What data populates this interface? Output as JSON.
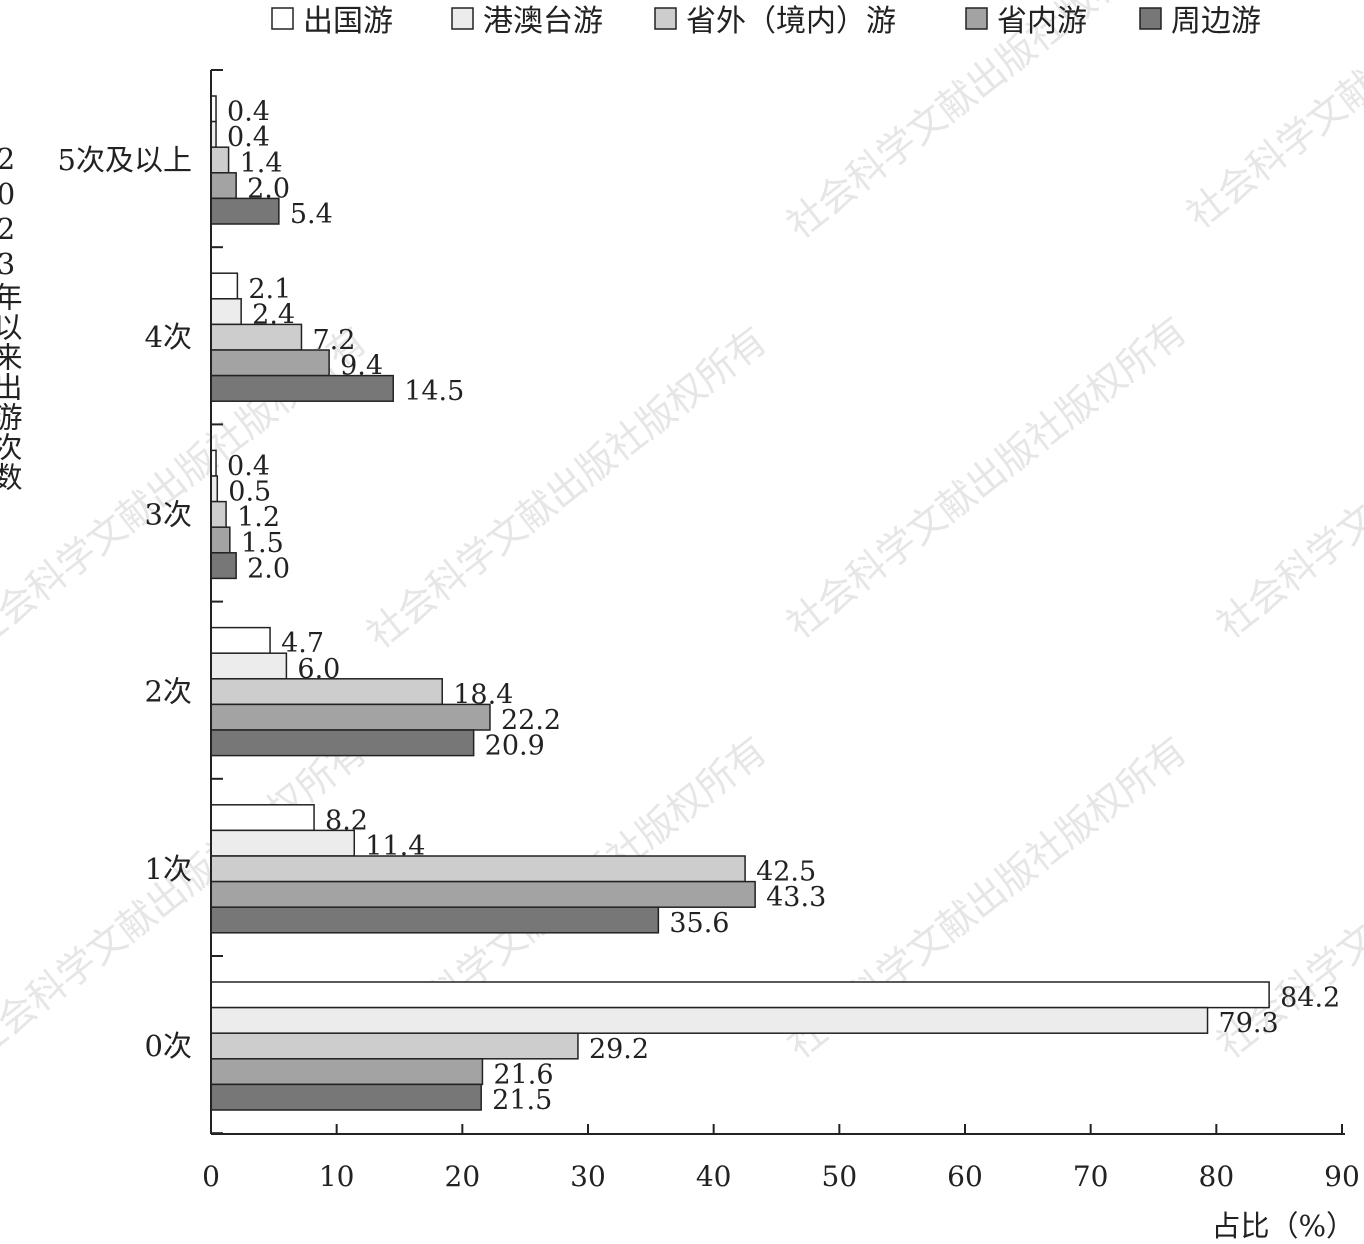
{
  "chart_data": {
    "type": "bar",
    "orientation": "horizontal",
    "categories": [
      "5次及以上",
      "4次",
      "3次",
      "2次",
      "1次",
      "0次"
    ],
    "series": [
      {
        "name": "出国游",
        "color": "#ffffff",
        "values": [
          0.4,
          2.1,
          0.4,
          4.7,
          8.2,
          84.2
        ]
      },
      {
        "name": "港澳台游",
        "color": "#ececec",
        "values": [
          0.4,
          2.4,
          0.5,
          6.0,
          11.4,
          79.3
        ]
      },
      {
        "name": "省外（境内）游",
        "color": "#cdcdcd",
        "values": [
          1.4,
          7.2,
          1.2,
          18.4,
          42.5,
          29.2
        ]
      },
      {
        "name": "省内游",
        "color": "#a3a3a3",
        "values": [
          2.0,
          9.4,
          1.5,
          22.2,
          43.3,
          21.6
        ]
      },
      {
        "name": "周边游",
        "color": "#777777",
        "values": [
          5.4,
          14.5,
          2.0,
          20.9,
          35.6,
          21.5
        ]
      }
    ],
    "value_labels": [
      [
        "0.4",
        "2.1",
        "0.4",
        "4.7",
        "8.2",
        "84.2"
      ],
      [
        "0.4",
        "2.4",
        "0.5",
        "6.0",
        "11.4",
        "79.3"
      ],
      [
        "1.4",
        "7.2",
        "1.2",
        "18.4",
        "42.5",
        "29.2"
      ],
      [
        "2.0",
        "9.4",
        "1.5",
        "22.2",
        "43.3",
        "21.6"
      ],
      [
        "5.4",
        "14.5",
        "2.0",
        "20.9",
        "35.6",
        "21.5"
      ]
    ],
    "xticks": [
      "0",
      "10",
      "20",
      "30",
      "40",
      "50",
      "60",
      "70",
      "80",
      "90"
    ],
    "xlim": [
      0,
      90
    ],
    "xlabel": "占比（%）",
    "ylabel": "2023年以来出游次数",
    "legend_position": "top",
    "grid": false
  },
  "watermark": "社会科学文献出版社版权所有"
}
